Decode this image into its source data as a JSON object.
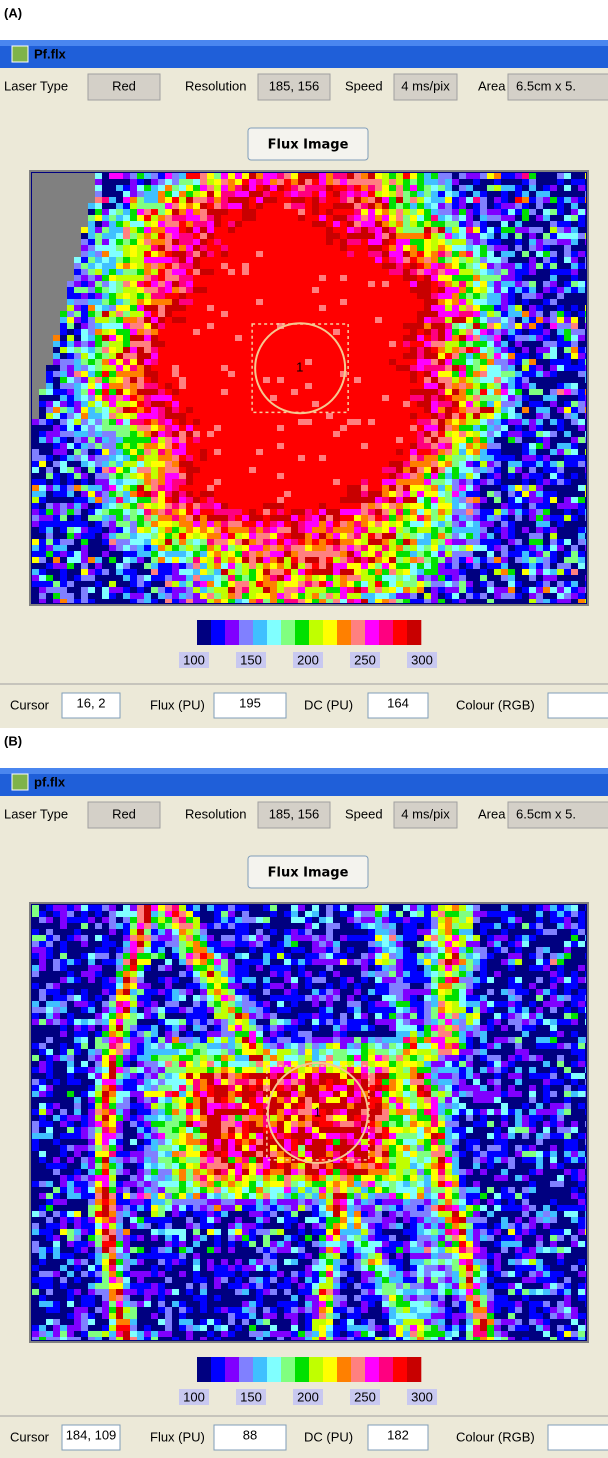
{
  "panels": [
    {
      "label": "(A)",
      "title": "Pf.flx",
      "toolbar": [
        {
          "label": "Laser Type",
          "value": "Red"
        },
        {
          "label": "Resolution",
          "value": "185, 156"
        },
        {
          "label": "Speed",
          "value": "4 ms/pix"
        },
        {
          "label": "Area",
          "value": "6.5cm x 5."
        }
      ],
      "button": "Flux Image",
      "roi_label": "1",
      "colorbar": {
        "colors": [
          "#000080",
          "#0000ff",
          "#8000ff",
          "#8080ff",
          "#40c0ff",
          "#80ffff",
          "#80ff80",
          "#00e000",
          "#c0ff00",
          "#ffff00",
          "#ff8000",
          "#ff8080",
          "#ff00ff",
          "#ff0080",
          "#ff0000",
          "#c80000"
        ],
        "labels": [
          100,
          150,
          200,
          250,
          300
        ]
      },
      "status": [
        {
          "label": "Cursor",
          "value": "16, 2"
        },
        {
          "label": "Flux (PU)",
          "value": "195"
        },
        {
          "label": "DC (PU)",
          "value": "164"
        },
        {
          "label": "Colour (RGB)"
        }
      ]
    },
    {
      "label": "(B)",
      "title": "pf.flx",
      "toolbar": [
        {
          "label": "Laser Type",
          "value": "Red"
        },
        {
          "label": "Resolution",
          "value": "185, 156"
        },
        {
          "label": "Speed",
          "value": "4 ms/pix"
        },
        {
          "label": "Area",
          "value": "6.5cm x 5."
        }
      ],
      "button": "Flux Image",
      "roi_label": "1",
      "colorbar": {
        "colors": [
          "#000080",
          "#0000ff",
          "#8000ff",
          "#8080ff",
          "#40c0ff",
          "#80ffff",
          "#80ff80",
          "#00e000",
          "#c0ff00",
          "#ffff00",
          "#ff8000",
          "#ff8080",
          "#ff00ff",
          "#ff0080",
          "#ff0000",
          "#c80000"
        ],
        "labels": [
          100,
          150,
          200,
          250,
          300
        ]
      },
      "status": [
        {
          "label": "Cursor",
          "value": "184, 109"
        },
        {
          "label": "Flux (PU)",
          "value": "88"
        },
        {
          "label": "DC (PU)",
          "value": "182"
        },
        {
          "label": "Colour (RGB)"
        }
      ]
    }
  ]
}
